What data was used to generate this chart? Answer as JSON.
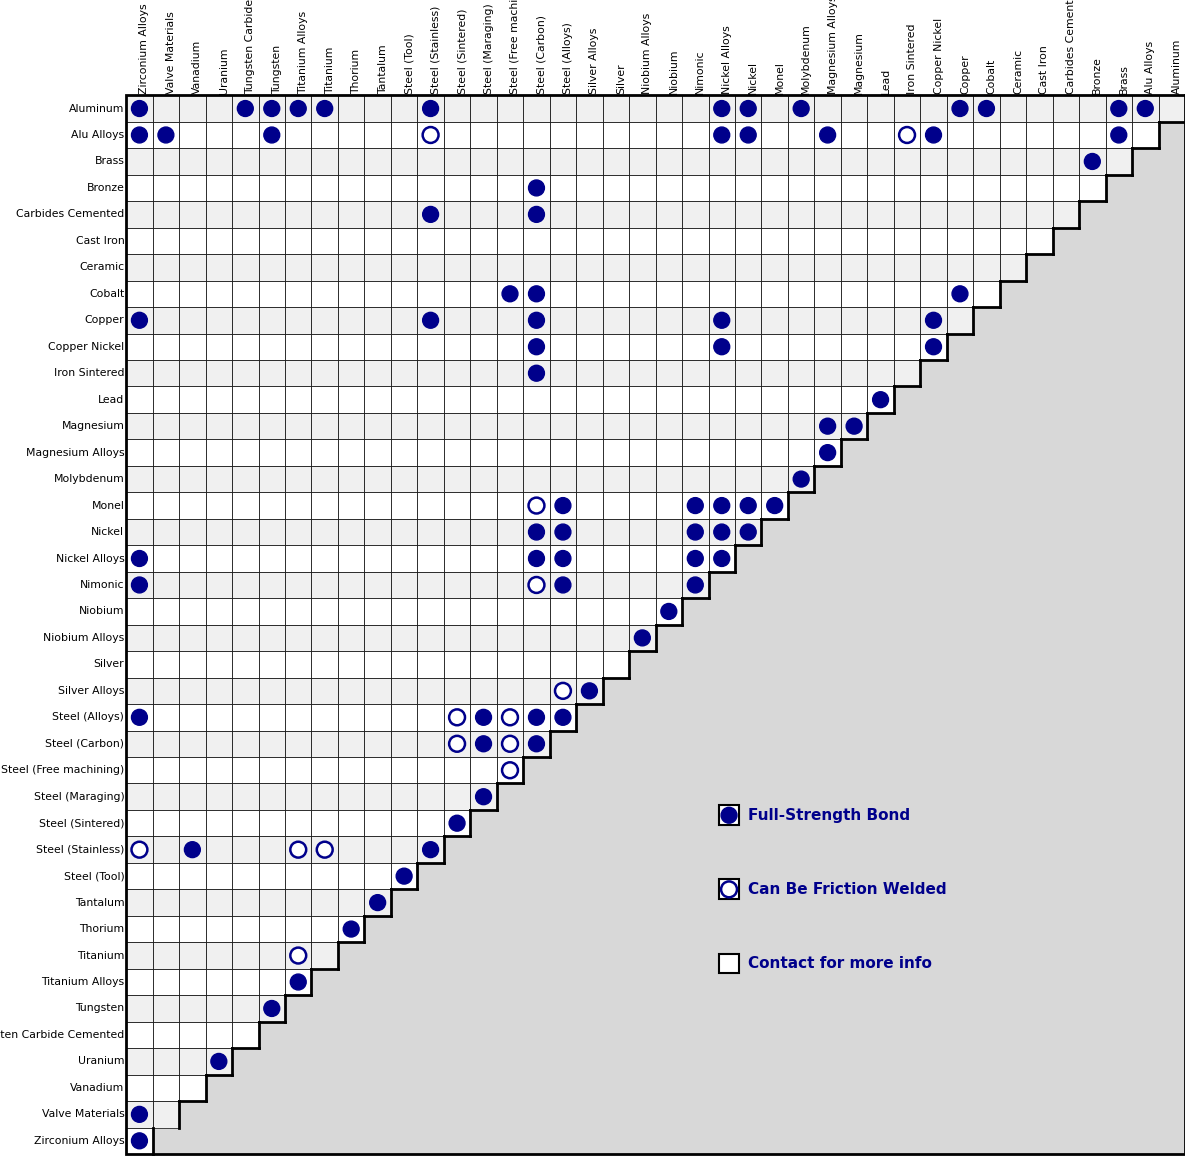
{
  "materials": [
    "Aluminum",
    "Alu Alloys",
    "Brass",
    "Bronze",
    "Carbides Cemented",
    "Cast Iron",
    "Ceramic",
    "Cobalt",
    "Copper",
    "Copper Nickel",
    "Iron Sintered",
    "Lead",
    "Magnesium",
    "Magnesium Alloys",
    "Molybdenum",
    "Monel",
    "Nickel",
    "Nickel Alloys",
    "Nimonic",
    "Niobium",
    "Niobium Alloys",
    "Silver",
    "Silver Alloys",
    "Steel (Alloys)",
    "Steel (Carbon)",
    "Steel (Free machining)",
    "Steel (Maraging)",
    "Steel (Sintered)",
    "Steel (Stainless)",
    "Steel (Tool)",
    "Tantalum",
    "Thorium",
    "Titanium",
    "Titanium Alloys",
    "Tungsten",
    "Tungsten Carbide Cemented",
    "Uranium",
    "Vanadium",
    "Valve Materials",
    "Zirconium Alloys"
  ],
  "bonds_full": [
    [
      "Aluminum",
      "Zirconium Alloys"
    ],
    [
      "Aluminum",
      "Tungsten Carbide Cemented"
    ],
    [
      "Aluminum",
      "Tungsten"
    ],
    [
      "Aluminum",
      "Titanium Alloys"
    ],
    [
      "Aluminum",
      "Titanium"
    ],
    [
      "Aluminum",
      "Steel (Stainless)"
    ],
    [
      "Aluminum",
      "Nickel Alloys"
    ],
    [
      "Aluminum",
      "Nickel"
    ],
    [
      "Aluminum",
      "Molybdenum"
    ],
    [
      "Aluminum",
      "Copper"
    ],
    [
      "Aluminum",
      "Cobalt"
    ],
    [
      "Aluminum",
      "Brass"
    ],
    [
      "Aluminum",
      "Alu Alloys"
    ],
    [
      "Alu Alloys",
      "Zirconium Alloys"
    ],
    [
      "Alu Alloys",
      "Valve Materials"
    ],
    [
      "Alu Alloys",
      "Tungsten"
    ],
    [
      "Alu Alloys",
      "Nickel Alloys"
    ],
    [
      "Alu Alloys",
      "Nickel"
    ],
    [
      "Alu Alloys",
      "Magnesium Alloys"
    ],
    [
      "Alu Alloys",
      "Copper Nickel"
    ],
    [
      "Alu Alloys",
      "Aluminum"
    ],
    [
      "Brass",
      "Alu Alloys"
    ],
    [
      "Bronze",
      "Steel (Carbon)"
    ],
    [
      "Bronze",
      "Brass"
    ],
    [
      "Carbides Cemented",
      "Steel (Stainless)"
    ],
    [
      "Carbides Cemented",
      "Steel (Carbon)"
    ],
    [
      "Cobalt",
      "Steel (Free machining)"
    ],
    [
      "Cobalt",
      "Steel (Carbon)"
    ],
    [
      "Copper",
      "Zirconium Alloys"
    ],
    [
      "Copper",
      "Steel (Stainless)"
    ],
    [
      "Copper",
      "Steel (Carbon)"
    ],
    [
      "Copper",
      "Nickel Alloys"
    ],
    [
      "Copper",
      "Copper Nickel"
    ],
    [
      "Copper",
      "Cobalt"
    ],
    [
      "Copper Nickel",
      "Steel (Carbon)"
    ],
    [
      "Copper Nickel",
      "Nickel Alloys"
    ],
    [
      "Copper Nickel",
      "Copper Nickel"
    ],
    [
      "Iron Sintered",
      "Steel (Carbon)"
    ],
    [
      "Lead",
      "Lead"
    ],
    [
      "Magnesium",
      "Magnesium"
    ],
    [
      "Magnesium Alloys",
      "Magnesium Alloys"
    ],
    [
      "Magnesium Alloys",
      "Magnesium"
    ],
    [
      "Molybdenum",
      "Molybdenum"
    ],
    [
      "Monel",
      "Steel (Alloys)"
    ],
    [
      "Monel",
      "Nickel Alloys"
    ],
    [
      "Monel",
      "Nickel"
    ],
    [
      "Monel",
      "Monel"
    ],
    [
      "Monel",
      "Monel"
    ],
    [
      "Nickel",
      "Steel (Alloys)"
    ],
    [
      "Nickel",
      "Nickel Alloys"
    ],
    [
      "Nickel",
      "Nickel"
    ],
    [
      "Nickel",
      "Monel"
    ],
    [
      "Nickel",
      "Nickel"
    ],
    [
      "Nickel Alloys",
      "Zirconium Alloys"
    ],
    [
      "Nickel Alloys",
      "Steel (Alloys)"
    ],
    [
      "Nickel Alloys",
      "Nickel Alloys"
    ],
    [
      "Nickel Alloys",
      "Nickel"
    ],
    [
      "Nickel Alloys",
      "Monel"
    ],
    [
      "Nimonic",
      "Zirconium Alloys"
    ],
    [
      "Nimonic",
      "Steel (Alloys)"
    ],
    [
      "Nimonic",
      "Nickel Alloys"
    ],
    [
      "Nimonic",
      "Nickel"
    ],
    [
      "Nimonic",
      "Monel"
    ],
    [
      "Nimonic",
      "Nimonic"
    ],
    [
      "Niobium",
      "Niobium"
    ],
    [
      "Niobium Alloys",
      "Niobium Alloys"
    ],
    [
      "Silver Alloys",
      "Silver Alloys"
    ],
    [
      "Steel (Alloys)",
      "Zirconium Alloys"
    ],
    [
      "Steel (Alloys)",
      "Steel (Carbon)"
    ],
    [
      "Steel (Alloys)",
      "Steel (Alloys)"
    ],
    [
      "Steel (Alloys)",
      "Nickel Alloys"
    ],
    [
      "Steel (Alloys)",
      "Nickel"
    ],
    [
      "Steel (Alloys)",
      "Steel (Maraging)"
    ],
    [
      "Steel (Alloys)",
      "Steel (Alloys)"
    ],
    [
      "Steel (Carbon)",
      "Steel (Carbon)"
    ],
    [
      "Steel (Carbon)",
      "Nickel Alloys"
    ],
    [
      "Steel (Carbon)",
      "Nickel"
    ],
    [
      "Steel (Carbon)",
      "Steel (Maraging)"
    ],
    [
      "Steel (Maraging)",
      "Steel (Alloys)"
    ],
    [
      "Steel (Maraging)",
      "Steel (Maraging)"
    ],
    [
      "Steel (Sintered)",
      "Steel (Sintered)"
    ],
    [
      "Steel (Stainless)",
      "Vanadium"
    ],
    [
      "Steel (Stainless)",
      "Steel (Stainless)"
    ],
    [
      "Steel (Tool)",
      "Steel (Tool)"
    ],
    [
      "Tantalum",
      "Tantalum"
    ],
    [
      "Tantalum",
      "Tantalum"
    ],
    [
      "Thorium",
      "Thorium"
    ],
    [
      "Titanium Alloys",
      "Titanium Alloys"
    ],
    [
      "Tungsten",
      "Tungsten"
    ],
    [
      "Uranium",
      "Uranium"
    ],
    [
      "Valve Materials",
      "Zirconium Alloys"
    ],
    [
      "Zirconium Alloys",
      "Zirconium Alloys"
    ]
  ],
  "bonds_friction": [
    [
      "Alu Alloys",
      "Steel (Stainless)"
    ],
    [
      "Alu Alloys",
      "Iron Sintered"
    ],
    [
      "Monel",
      "Steel (Carbon)"
    ],
    [
      "Nickel",
      "Steel (Carbon)"
    ],
    [
      "Nickel Alloys",
      "Steel (Carbon)"
    ],
    [
      "Nimonic",
      "Steel (Carbon)"
    ],
    [
      "Silver Alloys",
      "Steel (Alloys)"
    ],
    [
      "Steel (Alloys)",
      "Steel (Sintered)"
    ],
    [
      "Steel (Alloys)",
      "Steel (Free machining)"
    ],
    [
      "Steel (Carbon)",
      "Steel (Sintered)"
    ],
    [
      "Steel (Carbon)",
      "Steel (Free machining)"
    ],
    [
      "Steel (Free machining)",
      "Steel (Free machining)"
    ],
    [
      "Steel (Free machining)",
      "Steel (Free machining)"
    ],
    [
      "Steel (Stainless)",
      "Zirconium Alloys"
    ],
    [
      "Steel (Stainless)",
      "Titanium Alloys"
    ],
    [
      "Steel (Stainless)",
      "Titanium"
    ],
    [
      "Titanium",
      "Titanium Alloys"
    ]
  ],
  "legend_full": "Full-Strength Bond",
  "legend_friction": "Can Be Friction Welded",
  "legend_contact": "Contact for more info",
  "dot_color": "#00008B",
  "cell_even_bg": "#F0F0F0",
  "cell_odd_bg": "#FFFFFF",
  "header_bg": "#D8D8D8",
  "border_color": "#000000"
}
